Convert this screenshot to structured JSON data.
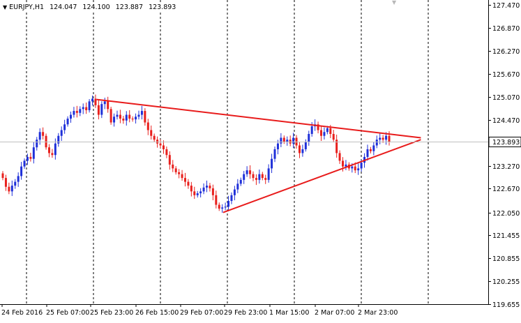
{
  "header": {
    "dropdown_icon": "triangle-down-icon",
    "symbol": "EURJPY",
    "timeframe": "H1",
    "open": "124.047",
    "high": "124.100",
    "low": "123.887",
    "close": "123.893"
  },
  "colors": {
    "bull": "#1f30d9",
    "bear": "#e8201d",
    "trendline": "#e81b1b",
    "grid": "#000000",
    "bid_line": "#c0c0c0",
    "axis": "#000000"
  },
  "chart_data": {
    "type": "candlestick",
    "ylim": [
      119.655,
      127.47
    ],
    "y_ticks": [
      "127.470",
      "126.870",
      "126.270",
      "125.670",
      "125.070",
      "124.470",
      "123.270",
      "122.670",
      "122.050",
      "121.455",
      "120.855",
      "120.255",
      "119.655"
    ],
    "x_ticks": [
      "24 Feb 2016",
      "25 Feb 07:00",
      "25 Feb 23:00",
      "26 Feb 15:00",
      "29 Feb 07:00",
      "29 Feb 23:00",
      "1 Mar 15:00",
      "2 Mar 07:00",
      "2 Mar 23:00"
    ],
    "current_price": "123.893",
    "closes": [
      122.95,
      122.72,
      122.6,
      122.75,
      122.85,
      123.0,
      123.25,
      123.4,
      123.5,
      123.45,
      123.75,
      123.95,
      124.15,
      124.05,
      123.75,
      123.6,
      123.55,
      123.85,
      124.05,
      124.2,
      124.35,
      124.5,
      124.6,
      124.7,
      124.65,
      124.75,
      124.8,
      124.72,
      124.95,
      125.02,
      124.85,
      124.6,
      124.88,
      124.95,
      124.75,
      124.4,
      124.55,
      124.6,
      124.5,
      124.45,
      124.6,
      124.5,
      124.48,
      124.55,
      124.6,
      124.7,
      124.4,
      124.2,
      124.05,
      123.95,
      123.85,
      123.8,
      123.7,
      123.55,
      123.3,
      123.2,
      123.1,
      123.05,
      122.95,
      122.85,
      122.75,
      122.6,
      122.5,
      122.55,
      122.6,
      122.7,
      122.75,
      122.68,
      122.5,
      122.25,
      122.15,
      122.18,
      122.2,
      122.35,
      122.5,
      122.65,
      122.8,
      122.9,
      123.05,
      123.15,
      123.05,
      122.95,
      122.9,
      123.05,
      122.95,
      122.9,
      123.2,
      123.45,
      123.7,
      123.85,
      124.0,
      123.9,
      123.95,
      123.85,
      124.0,
      123.8,
      123.6,
      123.7,
      123.9,
      124.1,
      124.3,
      124.35,
      124.2,
      124.05,
      124.15,
      124.25,
      124.1,
      123.95,
      123.6,
      123.4,
      123.25,
      123.3,
      123.2,
      123.25,
      123.15,
      123.2,
      123.35,
      123.5,
      123.7,
      123.65,
      123.8,
      123.95,
      124.0,
      123.95,
      124.05,
      123.893
    ],
    "trendlines": [
      {
        "from": [
          0.198,
          125.0
        ],
        "to": [
          0.862,
          124.0
        ]
      },
      {
        "from": [
          0.457,
          122.05
        ],
        "to": [
          0.862,
          123.95
        ]
      }
    ]
  }
}
